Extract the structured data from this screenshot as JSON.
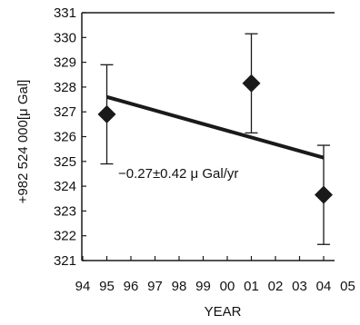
{
  "chart_data": {
    "type": "scatter",
    "title": "",
    "xlabel": "YEAR",
    "ylabel": "+982 524 000[μ Gal]",
    "x_ticks": [
      "94",
      "95",
      "96",
      "97",
      "98",
      "99",
      "00",
      "01",
      "02",
      "03",
      "04",
      "05"
    ],
    "y_ticks": [
      321,
      322,
      323,
      324,
      325,
      326,
      327,
      328,
      329,
      330,
      331
    ],
    "ylim": [
      321,
      331
    ],
    "grid": false,
    "legend": "none",
    "series": [
      {
        "marker": "diamond",
        "points": [
          {
            "x": "95",
            "y": 326.9,
            "err_low": 324.9,
            "err_high": 328.9
          },
          {
            "x": "01",
            "y": 328.15,
            "err_low": 326.15,
            "err_high": 330.15
          },
          {
            "x": "04",
            "y": 323.65,
            "err_low": 321.65,
            "err_high": 325.65
          }
        ]
      }
    ],
    "trend_line": {
      "from": {
        "x": "95",
        "y": 327.6
      },
      "to": {
        "x": "04",
        "y": 325.15
      }
    },
    "annotation": "−0.27±0.42 μ Gal/yr",
    "colors": {
      "marker": "#1a1a1a",
      "line": "#1a1a1a",
      "axis": "#1a1a1a",
      "background": "#ffffff"
    }
  }
}
